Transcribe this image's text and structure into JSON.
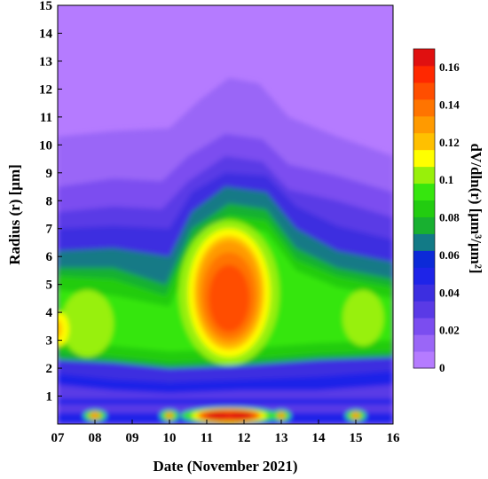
{
  "chart_data": {
    "type": "heatmap",
    "title": "",
    "xlabel": "Date (November 2021)",
    "ylabel": "Radius (r) [μm]",
    "colorbar_label": "dV/dln(r) [μm³/μm²]",
    "x_ticks": [
      "07",
      "08",
      "09",
      "10",
      "11",
      "12",
      "13",
      "14",
      "15",
      "16"
    ],
    "y_ticks": [
      "1",
      "2",
      "3",
      "4",
      "5",
      "6",
      "7",
      "8",
      "9",
      "10",
      "11",
      "12",
      "13",
      "14",
      "15"
    ],
    "xlim": [
      7,
      16
    ],
    "ylim": [
      0,
      15
    ],
    "clim": [
      0,
      0.17
    ],
    "colorbar_ticks": [
      "0",
      "0.02",
      "0.04",
      "0.06",
      "0.08",
      "0.1",
      "0.12",
      "0.14",
      "0.16"
    ],
    "colorbar_colors": [
      "#b57bff",
      "#9a66f7",
      "#7b4df0",
      "#5a3ae6",
      "#3c2ee0",
      "#1e24e8",
      "#0c2ad8",
      "#127a86",
      "#18b030",
      "#22cc10",
      "#36e60e",
      "#98f00a",
      "#ffff00",
      "#ffc000",
      "#ff9a00",
      "#ff7400",
      "#ff4e00",
      "#ff2800",
      "#e01010"
    ],
    "grid": false,
    "note_values": {
      "features": [
        {
          "date": 11.6,
          "radius": 4.6,
          "value": 0.145
        },
        {
          "date": 7.0,
          "radius": 3.4,
          "value": 0.1
        },
        {
          "date": 11.5,
          "radius": 0.3,
          "value": 0.16
        },
        {
          "date": 15.2,
          "radius": 3.8,
          "value": 0.08
        },
        {
          "date": 7.8,
          "radius": 3.6,
          "value": 0.08
        }
      ]
    }
  }
}
